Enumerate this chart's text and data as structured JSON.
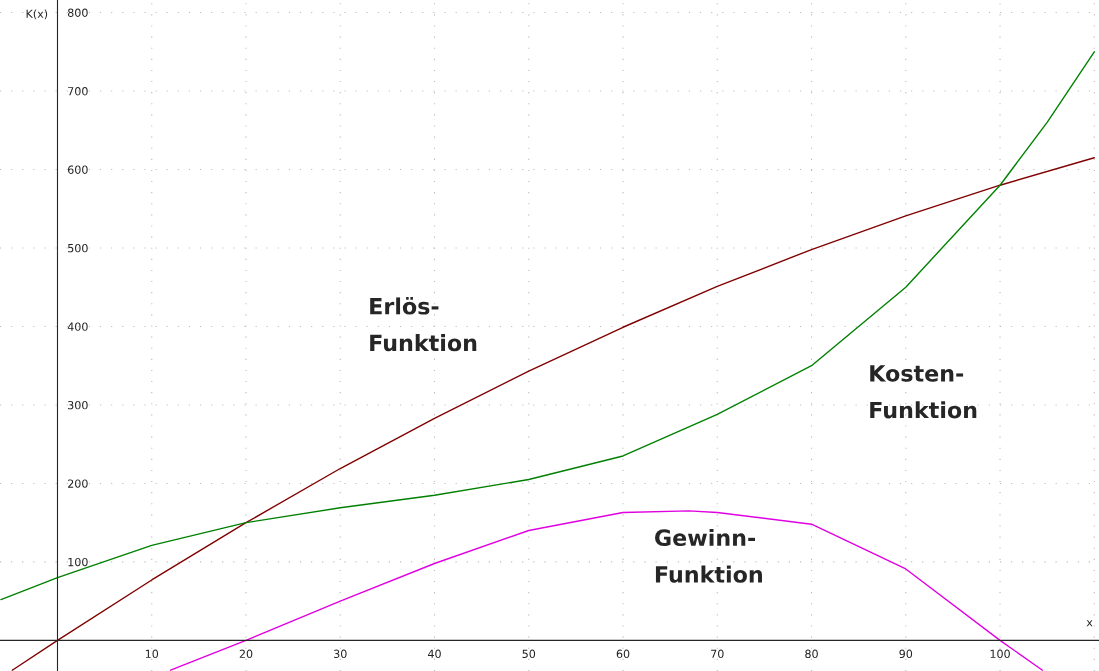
{
  "chart_data": {
    "type": "line",
    "xlabel": "x",
    "ylabel": "K(x)",
    "xlim": [
      -6.1,
      110.5
    ],
    "ylim": [
      -39,
      816
    ],
    "xticks": [
      10,
      20,
      30,
      40,
      50,
      60,
      70,
      80,
      90,
      100,
      {
        "value": 110,
        "label": null
      }
    ],
    "yticks": [
      100,
      200,
      300,
      400,
      500,
      600,
      700,
      800
    ],
    "grid": true,
    "marker": "none",
    "line_style": "solid",
    "series": [
      {
        "name": "Erlös-\nFunktion",
        "color": "#800000",
        "x": [
          -4.8,
          0,
          10,
          20,
          30,
          40,
          50,
          60,
          70,
          80,
          90,
          100,
          110
        ],
        "values": [
          -38,
          0,
          77,
          150,
          219,
          283,
          343,
          399,
          451,
          498,
          541,
          580,
          615
        ]
      },
      {
        "name": "Kosten-\nFunktion",
        "color": "#008000",
        "x": [
          -6,
          0,
          10,
          20,
          30,
          40,
          50,
          60,
          70,
          80,
          90,
          100,
          105,
          110
        ],
        "values": [
          52,
          80,
          121,
          150,
          169,
          185,
          205,
          235,
          288,
          350,
          450,
          580,
          660,
          750
        ]
      },
      {
        "name": "Gewinn-\nFunktion",
        "color": "#e000e0",
        "x": [
          12,
          20,
          30,
          40,
          50,
          60,
          67,
          70,
          80,
          90,
          100,
          104.5
        ],
        "values": [
          -38,
          0,
          50,
          98,
          140,
          163,
          165,
          163,
          148,
          91,
          0,
          -38
        ]
      }
    ]
  }
}
